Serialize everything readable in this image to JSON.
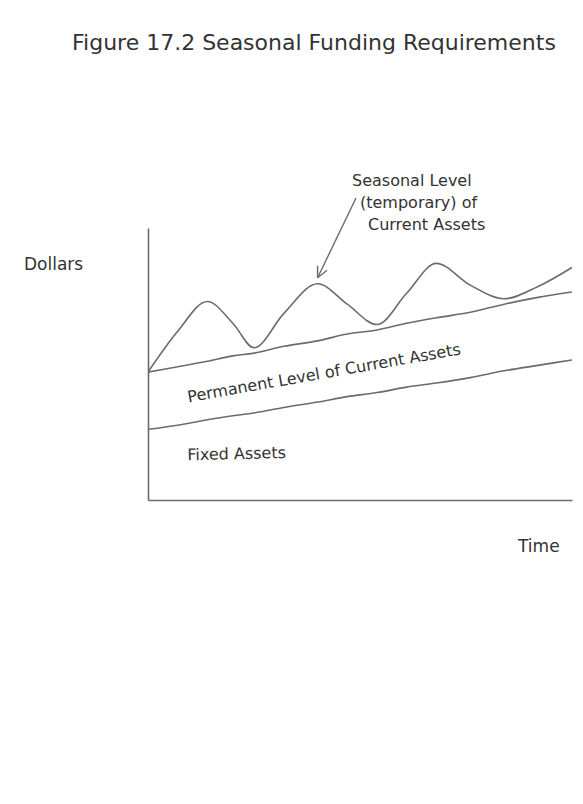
{
  "chart_data": {
    "type": "line",
    "title": "Figure 17.2 Seasonal Funding Requirements",
    "y_label": "Dollars",
    "x_label": "Time",
    "x": [
      0,
      7,
      14,
      20,
      25,
      32,
      40,
      47,
      54,
      61,
      68,
      76,
      84,
      92,
      100
    ],
    "xlim": [
      0,
      100
    ],
    "ylim": [
      0,
      100
    ],
    "stacked": true,
    "tick_labels": false,
    "color": "#6b6b6b",
    "series": [
      {
        "name": "Fixed Assets",
        "values": [
          26,
          27.5,
          29.5,
          31,
          32,
          34,
          36,
          38,
          39.5,
          41.5,
          43,
          45,
          47.5,
          49.5,
          51.5
        ]
      },
      {
        "name": "Permanent Level of Current Assets",
        "values": [
          21,
          21.5,
          21.5,
          22,
          22,
          22.5,
          22.5,
          23,
          23,
          23.5,
          24,
          24,
          24.5,
          25,
          25
        ]
      },
      {
        "name": "Seasonal Level (temporary) of Current Assets",
        "values": [
          0,
          13,
          22,
          12,
          2,
          12,
          21,
          11,
          2,
          11,
          20,
          10,
          2,
          4,
          9
        ]
      }
    ]
  }
}
